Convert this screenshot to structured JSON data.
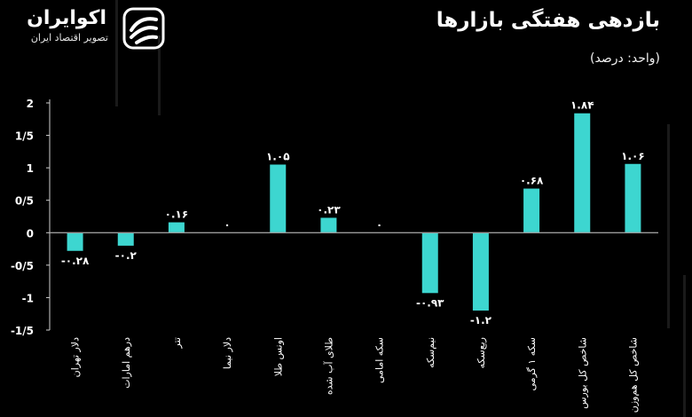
{
  "logo": {
    "name": "اکوایران",
    "tagline": "تصویر اقتصاد ایران"
  },
  "header": {
    "title": "بازدهی هفتگی بازارها",
    "unit": "(واحد: درصد)"
  },
  "colors": {
    "bar": "#3dd6d0",
    "background": "#000000",
    "text": "#ffffff",
    "zero_line": "#9a9a9a",
    "axis": "#cfcfcf"
  },
  "chart_data": {
    "type": "bar",
    "categories": [
      "دلار تهران",
      "درهم امارات",
      "تتر",
      "دلار نیما",
      "اونس طلا",
      "طلای آب شده",
      "سکه امامی",
      "نیم‌سکه",
      "ربع‌سکه",
      "سکه ۱ گرمی",
      "شاخص کل بورس",
      "شاخص کل هم‌وزن"
    ],
    "values": [
      -0.28,
      -0.2,
      0.16,
      0,
      1.05,
      0.23,
      0,
      -0.93,
      -1.2,
      0.68,
      1.84,
      1.06
    ],
    "value_labels": [
      "-۰.۲۸",
      "-۰.۲",
      "۰.۱۶",
      "۰",
      "۱.۰۵",
      "۰.۲۳",
      "۰",
      "-۰.۹۳",
      "-۱.۲",
      "۰.۶۸",
      "۱.۸۴",
      "۱.۰۶"
    ],
    "ylim": [
      -1.5,
      2
    ],
    "yticks": [
      2,
      1.5,
      1,
      0.5,
      0,
      -0.5,
      -1,
      -1.5
    ],
    "ytick_labels": [
      "2",
      "1/5",
      "1",
      "0/5",
      "0",
      "-0/5",
      "-1",
      "-1/5"
    ],
    "title": "بازدهی هفتگی بازارها",
    "xlabel": "",
    "ylabel": "",
    "grid": false,
    "legend": "none"
  }
}
